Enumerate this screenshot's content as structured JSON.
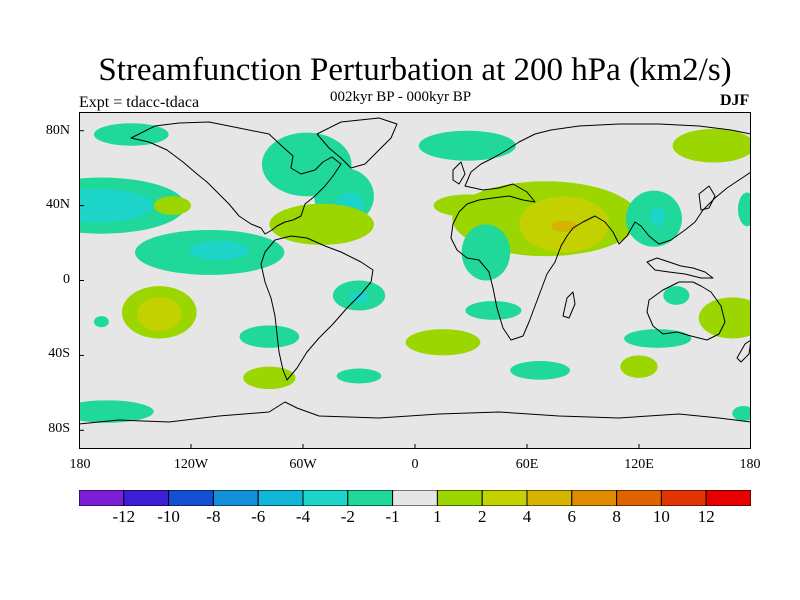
{
  "header": {
    "title": "Streamfunction Perturbation at 200 hPa (km2/s)",
    "subtitle": "002kyr BP - 000kyr BP",
    "experiment": "Expt = tdacc-tdaca",
    "season": "DJF"
  },
  "axes": {
    "lat_labels": [
      "80N",
      "40N",
      "0",
      "40S",
      "80S"
    ],
    "lon_labels": [
      "180",
      "120W",
      "60W",
      "0",
      "60E",
      "120E",
      "180"
    ]
  },
  "colorbar": {
    "colors": [
      "#7d1fd6",
      "#3a1fd4",
      "#1450d6",
      "#138fd9",
      "#12b6d8",
      "#1cd4c8",
      "#1fd89a",
      "#e6e6e6",
      "#9bd600",
      "#c3d100",
      "#d6b300",
      "#df8c00",
      "#e06300",
      "#e23400",
      "#e80000"
    ],
    "labels": [
      "-12",
      "-10",
      "-8",
      "-6",
      "-4",
      "-2",
      "-1",
      "1",
      "2",
      "4",
      "6",
      "8",
      "10",
      "12"
    ]
  },
  "map_data": {
    "lon_range": [
      -180,
      180
    ],
    "lat_range": [
      -90,
      90
    ],
    "anomalies": [
      {
        "lon": -152,
        "lat": 78,
        "rx": 20,
        "ry": 6,
        "level": "-2"
      },
      {
        "lon": -168,
        "lat": 40,
        "rx": 45,
        "ry": 15,
        "level": "-2"
      },
      {
        "lon": -170,
        "lat": 40,
        "rx": 30,
        "ry": 9,
        "level": "-4"
      },
      {
        "lon": -130,
        "lat": 40,
        "rx": 10,
        "ry": 5,
        "level": "2"
      },
      {
        "lon": -110,
        "lat": 15,
        "rx": 40,
        "ry": 12,
        "level": "-2"
      },
      {
        "lon": -105,
        "lat": 16,
        "rx": 16,
        "ry": 5,
        "level": "-4"
      },
      {
        "lon": -137,
        "lat": -17,
        "rx": 20,
        "ry": 14,
        "level": "2"
      },
      {
        "lon": -137,
        "lat": -18,
        "rx": 12,
        "ry": 9,
        "level": "4"
      },
      {
        "lon": -168,
        "lat": -22,
        "rx": 4,
        "ry": 3,
        "level": "-2"
      },
      {
        "lon": -58,
        "lat": 62,
        "rx": 24,
        "ry": 17,
        "level": "-2"
      },
      {
        "lon": -38,
        "lat": 45,
        "rx": 16,
        "ry": 15,
        "level": "-2"
      },
      {
        "lon": -35,
        "lat": 40,
        "rx": 8,
        "ry": 7,
        "level": "-4"
      },
      {
        "lon": -50,
        "lat": 30,
        "rx": 28,
        "ry": 11,
        "level": "2"
      },
      {
        "lon": -30,
        "lat": -8,
        "rx": 14,
        "ry": 8,
        "level": "-2"
      },
      {
        "lon": -30,
        "lat": -9,
        "rx": 5,
        "ry": 3,
        "level": "-4"
      },
      {
        "lon": -78,
        "lat": -30,
        "rx": 16,
        "ry": 6,
        "level": "-2"
      },
      {
        "lon": -78,
        "lat": -52,
        "rx": 14,
        "ry": 6,
        "level": "2"
      },
      {
        "lon": -30,
        "lat": -51,
        "rx": 12,
        "ry": 4,
        "level": "-2"
      },
      {
        "lon": -165,
        "lat": -70,
        "rx": 25,
        "ry": 6,
        "level": "-2"
      },
      {
        "lon": 28,
        "lat": 72,
        "rx": 26,
        "ry": 8,
        "level": "-2"
      },
      {
        "lon": 160,
        "lat": 72,
        "rx": 22,
        "ry": 9,
        "level": "2"
      },
      {
        "lon": 70,
        "lat": 33,
        "rx": 50,
        "ry": 20,
        "level": "2"
      },
      {
        "lon": 80,
        "lat": 30,
        "rx": 24,
        "ry": 15,
        "level": "4"
      },
      {
        "lon": 80,
        "lat": 29,
        "rx": 7,
        "ry": 3,
        "level": "6"
      },
      {
        "lon": 28,
        "lat": 40,
        "rx": 18,
        "ry": 6,
        "level": "2"
      },
      {
        "lon": 38,
        "lat": 15,
        "rx": 13,
        "ry": 15,
        "level": "-2"
      },
      {
        "lon": 128,
        "lat": 33,
        "rx": 15,
        "ry": 15,
        "level": "-2"
      },
      {
        "lon": 130,
        "lat": 34,
        "rx": 4,
        "ry": 5,
        "level": "-4"
      },
      {
        "lon": 178,
        "lat": 38,
        "rx": 5,
        "ry": 9,
        "level": "-2"
      },
      {
        "lon": 140,
        "lat": -8,
        "rx": 7,
        "ry": 5,
        "level": "-2"
      },
      {
        "lon": 170,
        "lat": -20,
        "rx": 18,
        "ry": 11,
        "level": "2"
      },
      {
        "lon": 130,
        "lat": -31,
        "rx": 18,
        "ry": 5,
        "level": "-2"
      },
      {
        "lon": 120,
        "lat": -46,
        "rx": 10,
        "ry": 6,
        "level": "2"
      },
      {
        "lon": 42,
        "lat": -16,
        "rx": 15,
        "ry": 5,
        "level": "-2"
      },
      {
        "lon": 15,
        "lat": -33,
        "rx": 20,
        "ry": 7,
        "level": "2"
      },
      {
        "lon": 67,
        "lat": -48,
        "rx": 16,
        "ry": 5,
        "level": "-2"
      },
      {
        "lon": 176,
        "lat": -71,
        "rx": 6,
        "ry": 4,
        "level": "-2"
      }
    ]
  }
}
